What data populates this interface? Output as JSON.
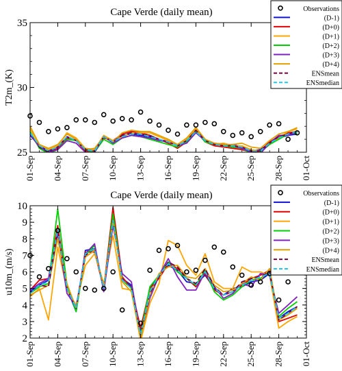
{
  "chart_data": [
    {
      "type": "line",
      "title": "Cape Verde (daily mean)",
      "xlabel": "",
      "ylabel": "T2m_(K)",
      "x_ticks": [
        "01-Sep",
        "04-Sep",
        "07-Sep",
        "10-Sep",
        "13-Sep",
        "16-Sep",
        "19-Sep",
        "22-Sep",
        "25-Sep",
        "28-Sep",
        "01-Oct"
      ],
      "y_ticks": [
        25,
        30,
        35
      ],
      "xlim": [
        1,
        31
      ],
      "ylim": [
        25,
        35
      ],
      "legend_position": "top-right",
      "days": [
        1,
        2,
        3,
        4,
        5,
        6,
        7,
        8,
        9,
        10,
        11,
        12,
        13,
        14,
        15,
        16,
        17,
        18,
        19,
        20,
        21,
        22,
        23,
        24,
        25,
        26,
        27,
        28,
        29,
        30
      ],
      "observations": {
        "name": "Observations",
        "values": [
          27.8,
          27.3,
          26.6,
          26.8,
          26.9,
          27.5,
          27.5,
          27.3,
          27.9,
          27.4,
          27.6,
          27.5,
          28.1,
          27.4,
          27.1,
          26.7,
          26.4,
          27.1,
          27.1,
          27.3,
          27.2,
          26.6,
          26.3,
          26.5,
          26.2,
          26.6,
          27.1,
          27.2,
          26.0,
          26.5
        ]
      },
      "series": [
        {
          "name": "(D-1)",
          "color": "#1010d0",
          "dash": "",
          "values": [
            26.3,
            25.5,
            25.1,
            25.4,
            26.2,
            25.9,
            25.3,
            25.2,
            26.2,
            25.8,
            26.3,
            26.4,
            26.3,
            26.2,
            26.0,
            25.8,
            25.5,
            25.9,
            26.6,
            25.9,
            25.7,
            25.5,
            25.6,
            25.4,
            25.1,
            25.2,
            25.7,
            26.1,
            26.3,
            26.4
          ]
        },
        {
          "name": "(D+0)",
          "color": "#e00000",
          "dash": "",
          "values": [
            26.5,
            25.4,
            25.0,
            25.3,
            26.1,
            25.9,
            25.1,
            25.1,
            26.1,
            25.9,
            26.4,
            26.6,
            26.5,
            26.3,
            26.0,
            25.7,
            25.3,
            25.8,
            26.7,
            25.8,
            25.5,
            25.4,
            25.3,
            25.2,
            25.0,
            25.1,
            25.8,
            26.2,
            26.5,
            26.6
          ]
        },
        {
          "name": "(D+1)",
          "color": "#ffa500",
          "dash": "",
          "values": [
            26.8,
            25.6,
            25.2,
            25.5,
            26.5,
            26.1,
            25.3,
            25.2,
            26.3,
            25.9,
            26.2,
            26.5,
            26.5,
            26.5,
            26.2,
            25.9,
            25.6,
            26.0,
            26.8,
            25.8,
            25.6,
            25.7,
            25.5,
            25.5,
            25.2,
            25.1,
            25.7,
            26.1,
            26.6,
            26.8
          ]
        },
        {
          "name": "(D+2)",
          "color": "#00d000",
          "dash": "",
          "values": [
            26.6,
            25.3,
            24.9,
            25.2,
            26.0,
            25.9,
            25.2,
            25.0,
            26.0,
            25.6,
            26.1,
            26.3,
            26.2,
            26.0,
            25.8,
            25.6,
            25.4,
            25.8,
            26.6,
            25.8,
            25.6,
            25.5,
            25.4,
            25.3,
            24.9,
            25.0,
            25.6,
            26.0,
            26.4,
            26.5
          ]
        },
        {
          "name": "(D+3)",
          "color": "#8020c0",
          "dash": "",
          "values": [
            26.4,
            25.4,
            25.0,
            25.2,
            25.9,
            25.7,
            25.0,
            25.0,
            26.2,
            25.7,
            26.1,
            26.3,
            26.2,
            26.1,
            25.9,
            25.8,
            25.5,
            25.7,
            26.5,
            25.9,
            25.7,
            25.6,
            25.5,
            25.3,
            25.0,
            24.9,
            25.7,
            26.3,
            26.3,
            26.6
          ]
        },
        {
          "name": "(D+4)",
          "color": "#e0a000",
          "dash": "",
          "values": [
            27.0,
            25.6,
            25.3,
            25.6,
            26.4,
            26.0,
            25.2,
            25.3,
            26.2,
            25.8,
            26.5,
            26.7,
            26.6,
            26.6,
            26.3,
            26.0,
            25.6,
            26.1,
            26.9,
            26.0,
            25.7,
            25.6,
            25.6,
            25.7,
            25.4,
            25.3,
            25.9,
            26.4,
            26.6,
            26.9
          ]
        },
        {
          "name": "ENSmean",
          "color": "#700040",
          "dash": "7,4",
          "values": [
            26.5,
            25.4,
            25.0,
            25.4,
            26.2,
            25.9,
            25.2,
            25.1,
            26.2,
            25.8,
            26.3,
            26.5,
            26.4,
            26.3,
            26.0,
            25.8,
            25.5,
            25.9,
            26.7,
            25.9,
            25.6,
            25.5,
            25.5,
            25.4,
            25.1,
            25.1,
            25.7,
            26.2,
            26.4,
            26.6
          ]
        },
        {
          "name": "ENSmedian",
          "color": "#20c8e8",
          "dash": "7,4",
          "values": [
            26.5,
            25.5,
            25.1,
            25.4,
            26.2,
            25.9,
            25.2,
            25.1,
            26.2,
            25.8,
            26.2,
            26.4,
            26.4,
            26.2,
            26.0,
            25.8,
            25.5,
            25.9,
            26.6,
            25.9,
            25.6,
            25.5,
            25.5,
            25.4,
            25.1,
            25.1,
            25.7,
            26.1,
            26.4,
            26.6
          ]
        }
      ]
    },
    {
      "type": "line",
      "title": "Cape Verde (daily mean)",
      "xlabel": "",
      "ylabel": "u10m_(m/s)",
      "x_ticks": [
        "01-Sep",
        "04-Sep",
        "07-Sep",
        "10-Sep",
        "13-Sep",
        "16-Sep",
        "19-Sep",
        "22-Sep",
        "25-Sep",
        "28-Sep",
        "01-Oct"
      ],
      "y_ticks": [
        2,
        3,
        4,
        5,
        6,
        7,
        8,
        9,
        10
      ],
      "xlim": [
        1,
        31
      ],
      "ylim": [
        2,
        10
      ],
      "legend_position": "top-right",
      "days": [
        1,
        2,
        3,
        4,
        5,
        6,
        7,
        8,
        9,
        10,
        11,
        12,
        13,
        14,
        15,
        16,
        17,
        18,
        19,
        20,
        21,
        22,
        23,
        24,
        25,
        26,
        27,
        28,
        29,
        30
      ],
      "observations": {
        "name": "Observations",
        "values": [
          7.0,
          5.7,
          6.2,
          8.5,
          6.8,
          6.0,
          5.0,
          4.9,
          5.0,
          6.0,
          3.7,
          null,
          2.9,
          6.1,
          7.3,
          7.4,
          7.6,
          6.0,
          6.1,
          6.7,
          7.5,
          7.2,
          6.3,
          5.8,
          5.2,
          5.4,
          5.9,
          4.3,
          5.4,
          null
        ]
      },
      "series": [
        {
          "name": "(D-1)",
          "color": "#1010d0",
          "dash": "",
          "values": [
            4.8,
            5.2,
            5.5,
            8.6,
            5.0,
            3.6,
            7.3,
            7.4,
            5.0,
            9.2,
            5.6,
            5.2,
            2.4,
            5.0,
            5.8,
            6.4,
            6.1,
            5.4,
            5.3,
            5.8,
            5.0,
            4.6,
            5.0,
            5.1,
            5.4,
            5.5,
            5.9,
            3.2,
            3.6,
            3.9
          ]
        },
        {
          "name": "(D+0)",
          "color": "#e00000",
          "dash": "",
          "values": [
            4.9,
            5.5,
            5.6,
            8.8,
            5.1,
            3.8,
            7.2,
            7.2,
            5.0,
            9.9,
            5.7,
            5.0,
            2.6,
            5.0,
            5.6,
            6.5,
            6.2,
            5.6,
            5.1,
            5.9,
            4.9,
            4.6,
            4.8,
            5.2,
            5.6,
            5.8,
            6.1,
            3.0,
            3.2,
            3.4
          ]
        },
        {
          "name": "(D+1)",
          "color": "#ffa500",
          "dash": "",
          "values": [
            4.5,
            5.0,
            3.1,
            7.5,
            4.9,
            4.0,
            6.4,
            7.1,
            5.3,
            8.2,
            5.0,
            4.9,
            1.8,
            4.1,
            5.3,
            7.9,
            7.6,
            6.4,
            5.8,
            7.1,
            5.4,
            5.0,
            5.0,
            6.3,
            6.0,
            6.0,
            5.8,
            2.6,
            3.0,
            3.3
          ]
        },
        {
          "name": "(D+2)",
          "color": "#00d000",
          "dash": "",
          "values": [
            4.7,
            5.1,
            5.3,
            9.8,
            5.2,
            3.6,
            7.0,
            7.6,
            4.9,
            9.5,
            5.5,
            5.0,
            2.2,
            5.1,
            5.8,
            6.6,
            6.0,
            5.6,
            5.2,
            6.1,
            4.8,
            4.3,
            4.6,
            5.1,
            5.5,
            5.6,
            6.0,
            3.3,
            3.8,
            4.2
          ]
        },
        {
          "name": "(D+3)",
          "color": "#8020c0",
          "dash": "",
          "values": [
            4.9,
            5.3,
            5.6,
            8.3,
            4.7,
            3.9,
            7.1,
            7.7,
            4.8,
            8.8,
            5.9,
            5.4,
            2.1,
            4.4,
            5.8,
            6.8,
            5.7,
            4.9,
            4.9,
            6.0,
            5.1,
            4.4,
            4.7,
            5.3,
            5.1,
            5.9,
            5.8,
            3.5,
            4.0,
            4.5
          ]
        },
        {
          "name": "(D+4)",
          "color": "#e0a000",
          "dash": "",
          "values": [
            4.6,
            4.9,
            5.2,
            8.0,
            5.3,
            3.8,
            6.9,
            7.3,
            5.1,
            9.1,
            5.4,
            4.8,
            2.0,
            4.6,
            5.9,
            6.3,
            6.4,
            5.7,
            5.6,
            6.2,
            5.2,
            4.8,
            4.9,
            5.3,
            5.7,
            5.5,
            6.2,
            3.1,
            3.4,
            3.8
          ]
        },
        {
          "name": "ENSmean",
          "color": "#700040",
          "dash": "7,4",
          "values": [
            4.7,
            5.2,
            5.1,
            8.5,
            5.0,
            3.8,
            7.0,
            7.4,
            5.0,
            9.1,
            5.5,
            5.1,
            2.2,
            4.7,
            5.7,
            6.6,
            6.3,
            5.6,
            5.3,
            6.2,
            5.1,
            4.6,
            4.8,
            5.4,
            5.6,
            5.7,
            6.0,
            3.1,
            3.5,
            3.9
          ]
        },
        {
          "name": "ENSmedian",
          "color": "#20c8e8",
          "dash": "7,4",
          "values": [
            4.7,
            5.2,
            5.4,
            8.6,
            5.0,
            3.8,
            7.1,
            7.4,
            5.0,
            9.1,
            5.5,
            5.0,
            2.2,
            4.8,
            5.8,
            6.5,
            6.1,
            5.6,
            5.2,
            6.0,
            5.0,
            4.6,
            4.8,
            5.2,
            5.5,
            5.7,
            5.9,
            3.2,
            3.5,
            3.9
          ]
        }
      ]
    }
  ]
}
